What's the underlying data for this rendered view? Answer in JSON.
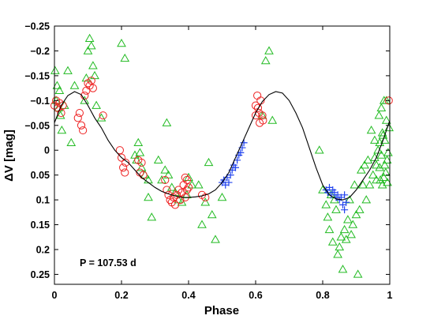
{
  "chart_data": {
    "type": "scatter",
    "xlabel": "Phase",
    "ylabel": "ΔV [mag]",
    "annotation": "P = 107.53 d",
    "xlim": [
      0,
      1
    ],
    "ylim": [
      -0.25,
      0.27
    ],
    "y_inverted": true,
    "grid": false,
    "x_ticks": [
      0,
      0.2,
      0.4,
      0.6,
      0.8,
      1
    ],
    "x_tick_labels": [
      "0",
      "0.2",
      "0.4",
      "0.6",
      "0.8",
      "1"
    ],
    "y_ticks": [
      -0.25,
      -0.2,
      -0.15,
      -0.1,
      -0.05,
      0,
      0.05,
      0.1,
      0.15,
      0.2,
      0.25
    ],
    "y_tick_labels": [
      "−0.25",
      "−0.2",
      "−0.15",
      "−0.1",
      "−0.05",
      "0",
      "0.05",
      "0.1",
      "0.15",
      "0.2",
      "0.25"
    ],
    "series": [
      {
        "marker": "triangle",
        "color": "#22bb22",
        "points": [
          [
            0.002,
            -0.16
          ],
          [
            0.005,
            -0.1
          ],
          [
            0.008,
            -0.13
          ],
          [
            0.012,
            -0.085
          ],
          [
            0.015,
            -0.12
          ],
          [
            0.018,
            -0.07
          ],
          [
            0.022,
            -0.04
          ],
          [
            0.03,
            -0.09
          ],
          [
            0.04,
            -0.16
          ],
          [
            0.05,
            -0.015
          ],
          [
            0.06,
            -0.13
          ],
          [
            0.09,
            -0.1
          ],
          [
            0.095,
            -0.145
          ],
          [
            0.1,
            -0.2
          ],
          [
            0.105,
            -0.225
          ],
          [
            0.11,
            -0.21
          ],
          [
            0.115,
            -0.17
          ],
          [
            0.12,
            -0.15
          ],
          [
            0.125,
            -0.09
          ],
          [
            0.14,
            -0.065
          ],
          [
            0.2,
            -0.215
          ],
          [
            0.21,
            -0.185
          ],
          [
            0.24,
            0.01
          ],
          [
            0.245,
            0.02
          ],
          [
            0.25,
            -0.015
          ],
          [
            0.255,
            0.005
          ],
          [
            0.26,
            0.035
          ],
          [
            0.27,
            0.05
          ],
          [
            0.28,
            0.06
          ],
          [
            0.31,
            0.02
          ],
          [
            0.32,
            0.06
          ],
          [
            0.33,
            0.04
          ],
          [
            0.335,
            -0.055
          ],
          [
            0.34,
            0.05
          ],
          [
            0.35,
            0.075
          ],
          [
            0.36,
            0.085
          ],
          [
            0.37,
            0.1
          ],
          [
            0.38,
            0.105
          ],
          [
            0.395,
            0.09
          ],
          [
            0.4,
            0.055
          ],
          [
            0.41,
            0.07
          ],
          [
            0.28,
            0.095
          ],
          [
            0.29,
            0.135
          ],
          [
            0.43,
            0.07
          ],
          [
            0.44,
            0.15
          ],
          [
            0.45,
            0.105
          ],
          [
            0.47,
            0.13
          ],
          [
            0.48,
            0.18
          ],
          [
            0.5,
            0.095
          ],
          [
            0.46,
            0.025
          ],
          [
            0.62,
            -0.07
          ],
          [
            0.63,
            -0.18
          ],
          [
            0.64,
            -0.2
          ],
          [
            0.65,
            -0.06
          ],
          [
            0.79,
            0.0
          ],
          [
            0.8,
            0.08
          ],
          [
            0.81,
            0.11
          ],
          [
            0.815,
            0.135
          ],
          [
            0.82,
            0.16
          ],
          [
            0.825,
            0.09
          ],
          [
            0.83,
            0.185
          ],
          [
            0.835,
            0.1
          ],
          [
            0.84,
            0.12
          ],
          [
            0.845,
            0.21
          ],
          [
            0.85,
            0.195
          ],
          [
            0.855,
            0.175
          ],
          [
            0.86,
            0.24
          ],
          [
            0.865,
            0.16
          ],
          [
            0.87,
            0.18
          ],
          [
            0.875,
            0.14
          ],
          [
            0.88,
            0.1
          ],
          [
            0.885,
            0.17
          ],
          [
            0.89,
            0.15
          ],
          [
            0.895,
            0.07
          ],
          [
            0.9,
            0.13
          ],
          [
            0.905,
            0.25
          ],
          [
            0.91,
            0.12
          ],
          [
            0.915,
            0.04
          ],
          [
            0.92,
            0.07
          ],
          [
            0.925,
            0.03
          ],
          [
            0.93,
            0.1
          ],
          [
            0.935,
            0.02
          ],
          [
            0.94,
            0.07
          ],
          [
            0.945,
            -0.04
          ],
          [
            0.95,
            0.05
          ],
          [
            0.955,
            -0.02
          ],
          [
            0.96,
            0.03
          ],
          [
            0.965,
            0.0
          ],
          [
            0.97,
            0.035
          ],
          [
            0.972,
            0.06
          ],
          [
            0.975,
            0.01
          ],
          [
            0.978,
            0.07
          ],
          [
            0.98,
            -0.03
          ],
          [
            0.982,
            0.055
          ],
          [
            0.985,
            -0.02
          ],
          [
            0.988,
            0.045
          ],
          [
            0.99,
            -0.06
          ],
          [
            0.992,
            0.02
          ],
          [
            0.995,
            0.005
          ],
          [
            0.998,
            -0.045
          ],
          [
            0.968,
            -0.07
          ],
          [
            0.975,
            -0.085
          ],
          [
            0.983,
            -0.1
          ],
          [
            0.99,
            -0.1
          ],
          [
            0.978,
            -0.035
          ],
          [
            0.985,
            0.03
          ],
          [
            0.993,
            0.065
          ],
          [
            0.97,
            -0.015
          ],
          [
            0.96,
            0.06
          ],
          [
            0.955,
            0.015
          ]
        ]
      },
      {
        "marker": "circle",
        "color": "#ee2222",
        "points": [
          [
            0.0,
            -0.09
          ],
          [
            0.005,
            -0.1
          ],
          [
            0.01,
            -0.085
          ],
          [
            0.015,
            -0.095
          ],
          [
            0.02,
            -0.075
          ],
          [
            0.025,
            -0.09
          ],
          [
            0.07,
            -0.065
          ],
          [
            0.075,
            -0.075
          ],
          [
            0.08,
            -0.05
          ],
          [
            0.085,
            -0.04
          ],
          [
            0.09,
            -0.11
          ],
          [
            0.095,
            -0.12
          ],
          [
            0.1,
            -0.135
          ],
          [
            0.105,
            -0.13
          ],
          [
            0.11,
            -0.14
          ],
          [
            0.115,
            -0.125
          ],
          [
            0.145,
            -0.07
          ],
          [
            0.195,
            0.0
          ],
          [
            0.2,
            0.015
          ],
          [
            0.205,
            0.035
          ],
          [
            0.21,
            0.045
          ],
          [
            0.212,
            0.025
          ],
          [
            0.25,
            0.02
          ],
          [
            0.255,
            0.045
          ],
          [
            0.26,
            0.025
          ],
          [
            0.265,
            0.05
          ],
          [
            0.33,
            0.06
          ],
          [
            0.335,
            0.08
          ],
          [
            0.34,
            0.09
          ],
          [
            0.345,
            0.1
          ],
          [
            0.35,
            0.105
          ],
          [
            0.355,
            0.095
          ],
          [
            0.36,
            0.11
          ],
          [
            0.365,
            0.09
          ],
          [
            0.37,
            0.08
          ],
          [
            0.375,
            0.1
          ],
          [
            0.38,
            0.085
          ],
          [
            0.385,
            0.07
          ],
          [
            0.39,
            0.095
          ],
          [
            0.395,
            0.08
          ],
          [
            0.4,
            0.075
          ],
          [
            0.39,
            0.055
          ],
          [
            0.395,
            0.06
          ],
          [
            0.44,
            0.09
          ],
          [
            0.45,
            0.095
          ],
          [
            0.6,
            -0.07
          ],
          [
            0.6,
            -0.09
          ],
          [
            0.605,
            -0.11
          ],
          [
            0.607,
            -0.085
          ],
          [
            0.61,
            -0.075
          ],
          [
            0.612,
            -0.055
          ],
          [
            0.615,
            -0.1
          ],
          [
            0.62,
            -0.07
          ],
          [
            0.622,
            -0.06
          ],
          [
            0.997,
            -0.1
          ]
        ]
      },
      {
        "marker": "plus",
        "color": "#2244ee",
        "points": [
          [
            0.5,
            0.065
          ],
          [
            0.505,
            0.06
          ],
          [
            0.51,
            0.07
          ],
          [
            0.515,
            0.055
          ],
          [
            0.52,
            0.065
          ],
          [
            0.525,
            0.05
          ],
          [
            0.53,
            0.04
          ],
          [
            0.535,
            0.03
          ],
          [
            0.54,
            0.035
          ],
          [
            0.545,
            0.02
          ],
          [
            0.55,
            0.01
          ],
          [
            0.555,
            0.005
          ],
          [
            0.56,
            -0.005
          ],
          [
            0.565,
            -0.015
          ],
          [
            0.81,
            0.08
          ],
          [
            0.815,
            0.085
          ],
          [
            0.82,
            0.075
          ],
          [
            0.825,
            0.09
          ],
          [
            0.83,
            0.08
          ],
          [
            0.835,
            0.085
          ],
          [
            0.84,
            0.095
          ],
          [
            0.845,
            0.09
          ],
          [
            0.85,
            0.1
          ],
          [
            0.855,
            0.095
          ],
          [
            0.86,
            0.11
          ],
          [
            0.865,
            0.12
          ],
          [
            0.87,
            0.105
          ],
          [
            0.865,
            0.09
          ]
        ]
      }
    ],
    "fit_curve": {
      "color": "#000000",
      "points": [
        [
          0.0,
          -0.055
        ],
        [
          0.02,
          -0.09
        ],
        [
          0.04,
          -0.11
        ],
        [
          0.06,
          -0.118
        ],
        [
          0.08,
          -0.112
        ],
        [
          0.1,
          -0.09
        ],
        [
          0.12,
          -0.065
        ],
        [
          0.14,
          -0.045
        ],
        [
          0.16,
          -0.02
        ],
        [
          0.18,
          0.0
        ],
        [
          0.2,
          0.015
        ],
        [
          0.22,
          0.025
        ],
        [
          0.24,
          0.04
        ],
        [
          0.26,
          0.055
        ],
        [
          0.28,
          0.065
        ],
        [
          0.3,
          0.075
        ],
        [
          0.32,
          0.083
        ],
        [
          0.34,
          0.088
        ],
        [
          0.36,
          0.092
        ],
        [
          0.38,
          0.095
        ],
        [
          0.4,
          0.095
        ],
        [
          0.42,
          0.094
        ],
        [
          0.44,
          0.092
        ],
        [
          0.46,
          0.088
        ],
        [
          0.48,
          0.08
        ],
        [
          0.5,
          0.065
        ],
        [
          0.52,
          0.045
        ],
        [
          0.54,
          0.015
        ],
        [
          0.56,
          -0.015
        ],
        [
          0.58,
          -0.045
        ],
        [
          0.6,
          -0.075
        ],
        [
          0.62,
          -0.098
        ],
        [
          0.64,
          -0.112
        ],
        [
          0.66,
          -0.118
        ],
        [
          0.68,
          -0.115
        ],
        [
          0.7,
          -0.1
        ],
        [
          0.72,
          -0.075
        ],
        [
          0.74,
          -0.045
        ],
        [
          0.76,
          -0.005
        ],
        [
          0.78,
          0.035
        ],
        [
          0.8,
          0.07
        ],
        [
          0.82,
          0.09
        ],
        [
          0.84,
          0.098
        ],
        [
          0.86,
          0.1
        ],
        [
          0.88,
          0.095
        ],
        [
          0.9,
          0.08
        ],
        [
          0.92,
          0.06
        ],
        [
          0.94,
          0.04
        ],
        [
          0.96,
          0.015
        ],
        [
          0.98,
          -0.02
        ],
        [
          1.0,
          -0.06
        ]
      ]
    }
  }
}
